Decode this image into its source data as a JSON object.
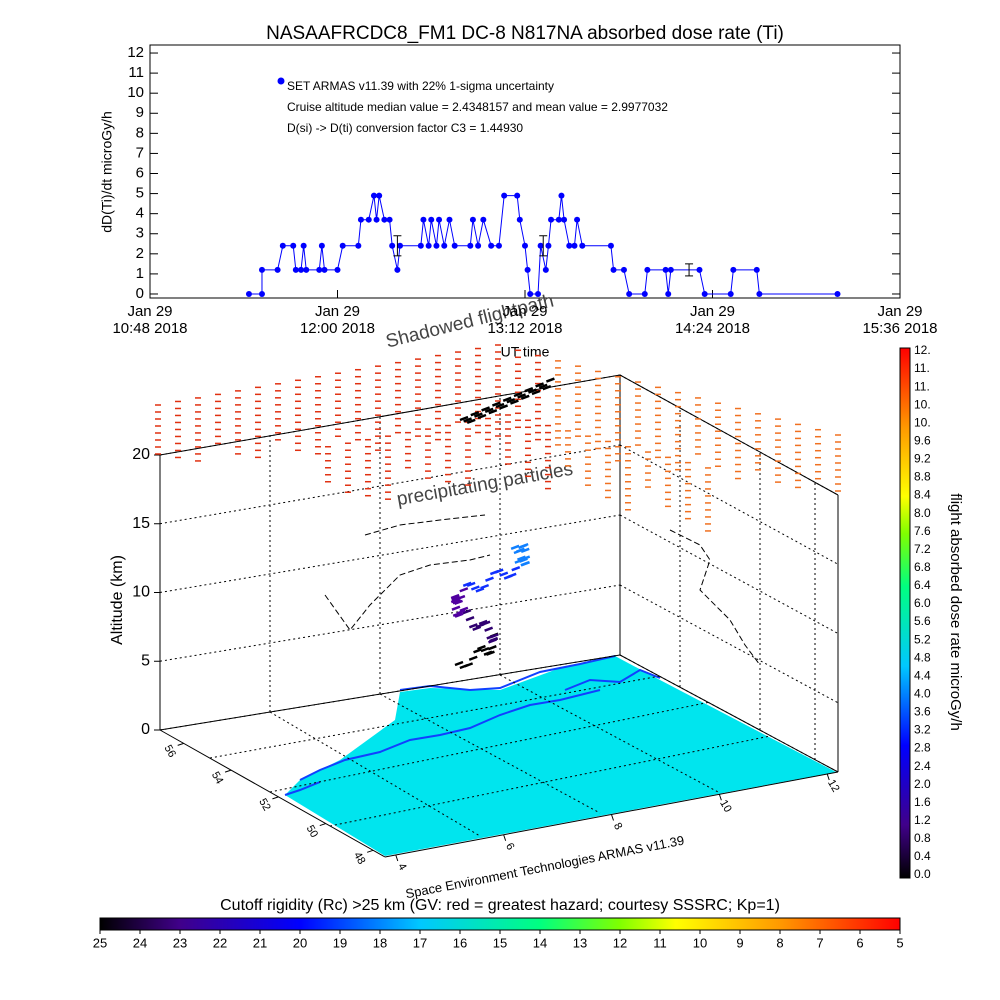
{
  "chart_data": {
    "type": "line",
    "title": "NASAAFRCDC8_FM1 DC-8    N817NA absorbed dose rate (Ti)",
    "xlabel": "UT time",
    "ylabel": "dD(Ti)/dt microGy/h",
    "annotations": [
      "Cruise altitude median value = 2.4348157 and mean value = 2.9977032",
      "D(si) -> D(ti) conversion factor C3 = 1.44930"
    ],
    "x": [
      "2018-01-29T11:26",
      "2018-01-29T11:31",
      "2018-01-29T11:31",
      "2018-01-29T11:37",
      "2018-01-29T11:39",
      "2018-01-29T11:43",
      "2018-01-29T11:44",
      "2018-01-29T11:46",
      "2018-01-29T11:47",
      "2018-01-29T11:48",
      "2018-01-29T11:53",
      "2018-01-29T11:54",
      "2018-01-29T11:55",
      "2018-01-29T12:00",
      "2018-01-29T12:02",
      "2018-01-29T12:08",
      "2018-01-29T12:09",
      "2018-01-29T12:12",
      "2018-01-29T12:14",
      "2018-01-29T12:15",
      "2018-01-29T12:16",
      "2018-01-29T12:18",
      "2018-01-29T12:20",
      "2018-01-29T12:21",
      "2018-01-29T12:23",
      "2018-01-29T12:24",
      "2018-01-29T12:32",
      "2018-01-29T12:33",
      "2018-01-29T12:35",
      "2018-01-29T12:36",
      "2018-01-29T12:38",
      "2018-01-29T12:39",
      "2018-01-29T12:41",
      "2018-01-29T12:43",
      "2018-01-29T12:45",
      "2018-01-29T12:51",
      "2018-01-29T12:52",
      "2018-01-29T12:54",
      "2018-01-29T12:56",
      "2018-01-29T12:59",
      "2018-01-29T13:02",
      "2018-01-29T13:04",
      "2018-01-29T13:09",
      "2018-01-29T13:10",
      "2018-01-29T13:12",
      "2018-01-29T13:13",
      "2018-01-29T13:14",
      "2018-01-29T13:17",
      "2018-01-29T13:18",
      "2018-01-29T13:20",
      "2018-01-29T13:21",
      "2018-01-29T13:22",
      "2018-01-29T13:25",
      "2018-01-29T13:26",
      "2018-01-29T13:27",
      "2018-01-29T13:29",
      "2018-01-29T13:31",
      "2018-01-29T13:32",
      "2018-01-29T13:34",
      "2018-01-29T13:45",
      "2018-01-29T13:46",
      "2018-01-29T13:50",
      "2018-01-29T13:52",
      "2018-01-29T13:58",
      "2018-01-29T13:59",
      "2018-01-29T14:06",
      "2018-01-29T14:07",
      "2018-01-29T14:08",
      "2018-01-29T14:19",
      "2018-01-29T14:21",
      "2018-01-29T14:31",
      "2018-01-29T14:32",
      "2018-01-29T14:41",
      "2018-01-29T14:42",
      "2018-01-29T15:12"
    ],
    "series": [
      {
        "name": "SET ARMAS v11.39 with 22% 1-sigma uncertainty",
        "color": "#0000ff",
        "values": [
          0,
          0,
          1.2,
          1.2,
          2.4,
          2.4,
          1.2,
          1.2,
          2.4,
          1.2,
          1.2,
          2.4,
          1.2,
          1.2,
          2.4,
          2.4,
          3.7,
          3.7,
          4.9,
          3.7,
          4.9,
          3.7,
          3.7,
          2.4,
          1.2,
          2.4,
          2.4,
          3.7,
          2.4,
          3.7,
          2.4,
          3.7,
          2.4,
          3.7,
          2.4,
          2.4,
          3.7,
          2.4,
          3.7,
          2.4,
          2.4,
          4.9,
          4.9,
          3.7,
          2.4,
          1.2,
          0,
          0,
          2.4,
          1.2,
          2.4,
          3.7,
          3.7,
          4.9,
          3.7,
          2.4,
          2.4,
          3.7,
          2.4,
          2.4,
          1.2,
          1.2,
          0,
          0,
          1.2,
          1.2,
          0,
          1.2,
          1.2,
          0,
          0,
          1.2,
          1.2,
          0,
          0
        ]
      }
    ],
    "error_bars": [
      {
        "x": "2018-01-29T12:23",
        "value": 2.4,
        "error": 0.5
      },
      {
        "x": "2018-01-29T13:19",
        "value": 2.4,
        "error": 0.5
      },
      {
        "x": "2018-01-29T14:15",
        "value": 1.2,
        "error": 0.3
      }
    ],
    "xlim": [
      "2018-01-29T10:48",
      "2018-01-29T15:36"
    ],
    "xticks": [
      {
        "value": "2018-01-29T10:48",
        "label": "Jan 29\n10:48 2018"
      },
      {
        "value": "2018-01-29T12:00",
        "label": "Jan 29\n12:00 2018"
      },
      {
        "value": "2018-01-29T13:12",
        "label": "Jan 29\n13:12 2018"
      },
      {
        "value": "2018-01-29T14:24",
        "label": "Jan 29\n14:24 2018"
      },
      {
        "value": "2018-01-29T15:36",
        "label": "Jan 29\n15:36 2018"
      }
    ],
    "ylim": [
      -0.2,
      12.4
    ],
    "yticks": [
      0,
      1,
      2,
      3,
      4,
      5,
      6,
      7,
      8,
      9,
      10,
      11,
      12
    ]
  },
  "panel_3d": {
    "shadow_label": "Shadowed flightpath",
    "particles_label": "precipitating particles",
    "zlabel": "Altitude (km)",
    "zlim": [
      0,
      20
    ],
    "zticks": [
      0,
      5,
      10,
      15,
      20
    ],
    "lat_lim": [
      57,
      47.5
    ],
    "lat_ticks": [
      56,
      54,
      52,
      50,
      48
    ],
    "lon_lim": [
      3.8,
      12.2
    ],
    "lon_ticks": [
      4,
      6,
      8,
      10,
      12
    ],
    "credit": "Space Environment Technologies ARMAS v11.39"
  },
  "dose_colorbar": {
    "label": "flight absorbed dose rate microGy/h",
    "labels": [
      "0.0",
      "0.4",
      "0.8",
      "1.2",
      "1.6",
      "2.0",
      "2.4",
      "2.8",
      "3.2",
      "3.6",
      "4.0",
      "4.4",
      "4.8",
      "5.2",
      "5.6",
      "6.0",
      "6.4",
      "6.8",
      "7.2",
      "7.6",
      "8.0",
      "8.4",
      "8.8",
      "9.2",
      "9.6",
      "10.",
      "10.",
      "11.",
      "11.",
      "12."
    ]
  },
  "rigidity_colorbar": {
    "title": "Cutoff rigidity (Rc) >25 km (GV: red = greatest hazard; courtesy SSSRC; Kp=1)",
    "lim": [
      25,
      5
    ],
    "ticks": [
      25,
      24,
      23,
      22,
      21,
      20,
      19,
      18,
      17,
      16,
      15,
      14,
      13,
      12,
      11,
      10,
      9,
      8,
      7,
      6,
      5
    ]
  }
}
